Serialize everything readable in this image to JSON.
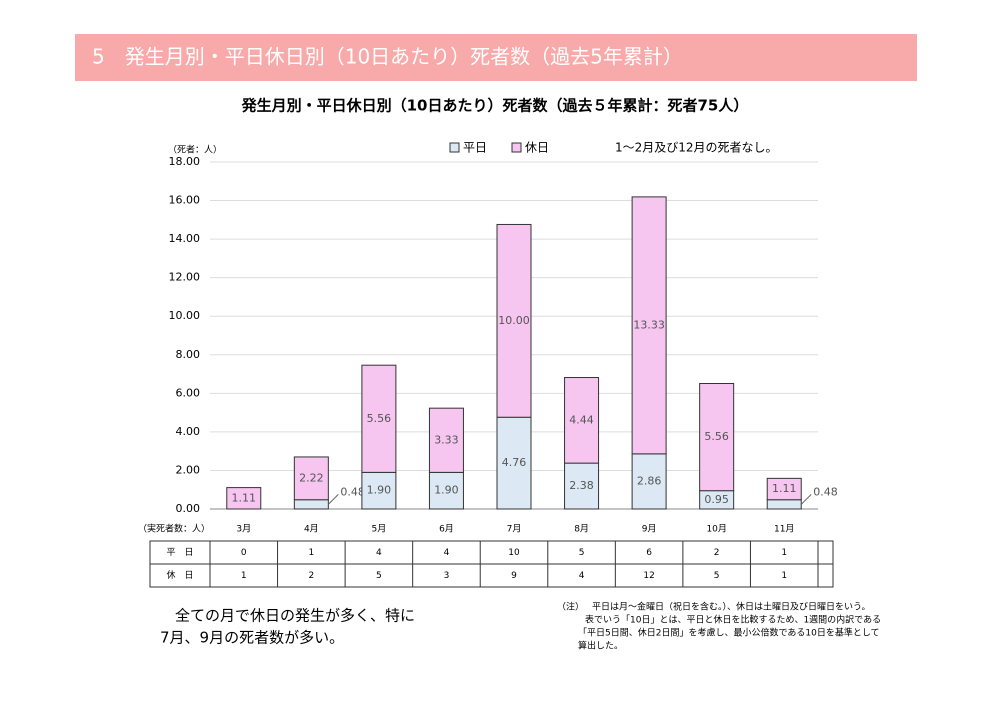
{
  "header": "5　発生月別・平日休日別（10日あたり）死者数（過去5年累計）",
  "summary": [
    "　全ての月で休日の発生が多く、特に",
    "7月、9月の死者数が多い。"
  ],
  "notes": {
    "marker": "（注）",
    "lines": [
      "平日は月～金曜日（祝日を含む。）、休日は土曜日及び日曜日をいう。",
      "表でいう「10日」とは、平日と休日を比較するため、1週間の内訳である",
      "「平日5日間、休日2日間」を考慮し、最小公倍数である10日を基準として",
      "算出した。"
    ]
  },
  "chart_data": {
    "type": "stacked_bar",
    "title": "発生月別・平日休日別（10日あたり）死者数（過去５年累計：死者75人）",
    "unit_label": "（死者：人）",
    "note": "1～2月及び12月の死者なし。",
    "categories": [
      "3月",
      "4月",
      "5月",
      "6月",
      "7月",
      "8月",
      "9月",
      "10月",
      "11月"
    ],
    "series": [
      {
        "name": "平日",
        "color": "#dce9f5",
        "values": [
          0,
          0.48,
          1.9,
          1.9,
          4.76,
          2.38,
          2.86,
          0.95,
          0.48
        ],
        "value_labels": [
          null,
          "0.48",
          "1.90",
          "1.90",
          "4.76",
          "2.38",
          "2.86",
          "0.95",
          "0.48"
        ]
      },
      {
        "name": "休日",
        "color": "#f6c6f1",
        "values": [
          1.11,
          2.22,
          5.56,
          3.33,
          10,
          4.44,
          13.33,
          5.56,
          1.11
        ],
        "value_labels": [
          "1.11",
          "2.22",
          "5.56",
          "3.33",
          "10.00",
          "4.44",
          "13.33",
          "5.56",
          "1.11"
        ]
      }
    ],
    "ylim": [
      0,
      18
    ],
    "yticks": [
      {
        "value": 0,
        "label": "0.00"
      },
      {
        "value": 2,
        "label": "2.00"
      },
      {
        "value": 4,
        "label": "4.00"
      },
      {
        "value": 6,
        "label": "6.00"
      },
      {
        "value": 8,
        "label": "8.00"
      },
      {
        "value": 10,
        "label": "10.00"
      },
      {
        "value": 12,
        "label": "12.00"
      },
      {
        "value": 14,
        "label": "14.00"
      },
      {
        "value": 16,
        "label": "16.00"
      },
      {
        "value": 18,
        "label": "18.00"
      }
    ],
    "grid": true,
    "table": {
      "header": "（実死者数：人）",
      "rows": [
        {
          "label": "平　日",
          "values": [
            0,
            1,
            4,
            4,
            10,
            5,
            6,
            2,
            1
          ]
        },
        {
          "label": "休　日",
          "values": [
            1,
            2,
            5,
            3,
            9,
            4,
            12,
            5,
            1
          ]
        }
      ]
    }
  }
}
